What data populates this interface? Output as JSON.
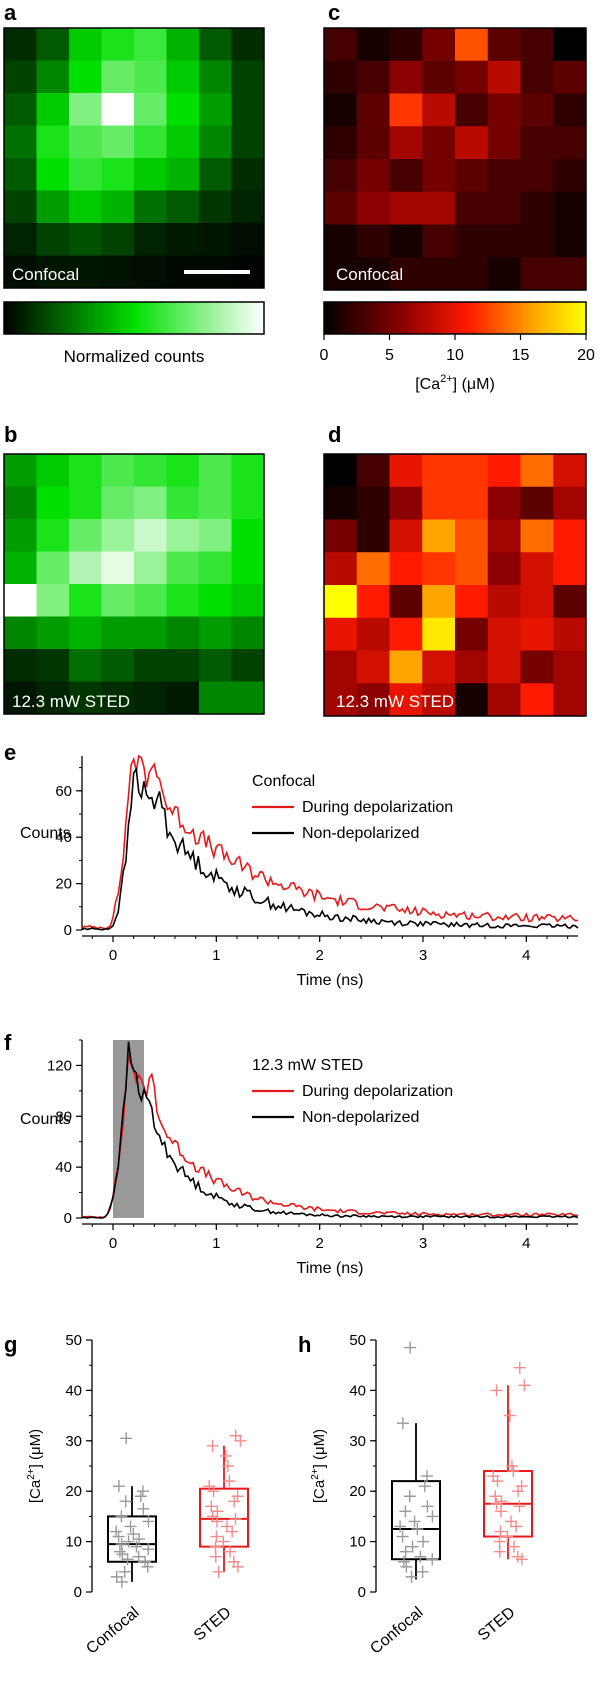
{
  "panels": {
    "a": {
      "letter": "a",
      "label": "Confocal",
      "colorbar_label": "Normalized counts",
      "grid": [
        [
          0.1,
          0.2,
          0.45,
          0.55,
          0.62,
          0.4,
          0.2,
          0.1
        ],
        [
          0.15,
          0.3,
          0.5,
          0.7,
          0.65,
          0.45,
          0.3,
          0.15
        ],
        [
          0.2,
          0.45,
          0.75,
          1.0,
          0.7,
          0.5,
          0.35,
          0.15
        ],
        [
          0.25,
          0.55,
          0.65,
          0.7,
          0.6,
          0.45,
          0.3,
          0.15
        ],
        [
          0.2,
          0.5,
          0.6,
          0.55,
          0.45,
          0.4,
          0.2,
          0.1
        ],
        [
          0.15,
          0.35,
          0.45,
          0.4,
          0.25,
          0.2,
          0.12,
          0.08
        ],
        [
          0.08,
          0.15,
          0.18,
          0.15,
          0.08,
          0.06,
          0.05,
          0.03
        ],
        [
          0.03,
          0.05,
          0.05,
          0.04,
          0.03,
          0.02,
          0.02,
          0.01
        ]
      ]
    },
    "b": {
      "letter": "b",
      "label": "12.3 mW STED",
      "grid": [
        [
          0.35,
          0.45,
          0.55,
          0.65,
          0.6,
          0.55,
          0.65,
          0.55
        ],
        [
          0.3,
          0.5,
          0.55,
          0.7,
          0.75,
          0.6,
          0.65,
          0.55
        ],
        [
          0.35,
          0.55,
          0.7,
          0.8,
          0.9,
          0.8,
          0.75,
          0.5
        ],
        [
          0.4,
          0.7,
          0.85,
          0.95,
          0.8,
          0.65,
          0.6,
          0.5
        ],
        [
          1.0,
          0.75,
          0.55,
          0.7,
          0.65,
          0.55,
          0.5,
          0.45
        ],
        [
          0.3,
          0.35,
          0.4,
          0.35,
          0.35,
          0.3,
          0.35,
          0.3
        ],
        [
          0.1,
          0.12,
          0.25,
          0.2,
          0.15,
          0.15,
          0.2,
          0.15
        ],
        [
          0.05,
          0.08,
          0.12,
          0.1,
          0.08,
          0.06,
          0.3,
          0.3
        ]
      ]
    },
    "c": {
      "letter": "c",
      "label": "Confocal",
      "colorbar_ticks": [
        "0",
        "5",
        "10",
        "15",
        "20"
      ],
      "colorbar_label_main": "[Ca",
      "colorbar_label_sup": "2+",
      "colorbar_label_tail": "] (μM)",
      "colorbar_range": [
        0,
        20
      ],
      "grid": [
        [
          3,
          1,
          2,
          5,
          13,
          4,
          3,
          0
        ],
        [
          2,
          3,
          6,
          4,
          5,
          8,
          3,
          4
        ],
        [
          1,
          4,
          12,
          8,
          3,
          5,
          4,
          2
        ],
        [
          2,
          4,
          7,
          5,
          8,
          5,
          3,
          3
        ],
        [
          3,
          5,
          3,
          5,
          4,
          3,
          3,
          2
        ],
        [
          4,
          6,
          7,
          7,
          3,
          3,
          2,
          1
        ],
        [
          1,
          2,
          1,
          3,
          2,
          2,
          2,
          1
        ],
        [
          1,
          1,
          2,
          2,
          2,
          1,
          3,
          3
        ]
      ]
    },
    "d": {
      "letter": "d",
      "label": "12.3 mW STED",
      "grid": [
        [
          0,
          3,
          10,
          12,
          12,
          11,
          14,
          9
        ],
        [
          1,
          2,
          6,
          12,
          12,
          6,
          4,
          7
        ],
        [
          5,
          2,
          9,
          16,
          13,
          7,
          14,
          11
        ],
        [
          8,
          14,
          11,
          12,
          13,
          6,
          9,
          11
        ],
        [
          20,
          11,
          4,
          16,
          11,
          8,
          9,
          4
        ],
        [
          10,
          8,
          11,
          19,
          5,
          9,
          10,
          8
        ],
        [
          7,
          9,
          16,
          9,
          7,
          9,
          5,
          7
        ],
        [
          7,
          6,
          10,
          8,
          1,
          7,
          11,
          7
        ]
      ]
    }
  },
  "chart_data": [
    {
      "panel": "e",
      "type": "line",
      "legend_title": "Confocal",
      "xlabel": "Time (ns)",
      "ylabel": "Counts",
      "xlim": [
        -0.3,
        4.5
      ],
      "ylim": [
        0,
        75
      ],
      "xticks": [
        0,
        1,
        2,
        3,
        4
      ],
      "yticks": [
        0,
        20,
        40,
        60
      ],
      "series": [
        {
          "name": "During depolarization",
          "color": "#e8191b",
          "peak": 76,
          "tau": 0.95,
          "baseline": 4,
          "rise": 0.06,
          "t_peak": 0.18,
          "secondary": [
            0.42,
            12
          ]
        },
        {
          "name": "Non-depolarized",
          "color": "#000000",
          "peak": 68,
          "tau": 0.7,
          "baseline": 1.5,
          "rise": 0.07,
          "t_peak": 0.2,
          "secondary": [
            0.45,
            10
          ]
        }
      ]
    },
    {
      "panel": "f",
      "type": "line",
      "legend_title": "12.3 mW STED",
      "xlabel": "Time (ns)",
      "ylabel": "Counts",
      "xlim": [
        -0.3,
        4.5
      ],
      "ylim": [
        0,
        140
      ],
      "xticks": [
        0,
        1,
        2,
        3,
        4
      ],
      "yticks": [
        0,
        40,
        80,
        120
      ],
      "gate": [
        0.0,
        0.3
      ],
      "series": [
        {
          "name": "During depolarization",
          "color": "#e8191b",
          "peak": 128,
          "tau": 0.55,
          "baseline": 2.5,
          "rise": 0.05,
          "t_peak": 0.15,
          "secondary": [
            0.38,
            25
          ]
        },
        {
          "name": "Non-depolarized",
          "color": "#000000",
          "peak": 132,
          "tau": 0.4,
          "baseline": 1,
          "rise": 0.05,
          "t_peak": 0.15,
          "secondary": [
            0.35,
            10
          ]
        }
      ]
    },
    {
      "panel": "g",
      "type": "box",
      "ylabel_main": "[Ca",
      "ylabel_sup": "2+",
      "ylabel_tail": "] (μM)",
      "ylim": [
        0,
        50
      ],
      "yticks": [
        0,
        10,
        20,
        30,
        40,
        50
      ],
      "categories": [
        "Confocal",
        "STED"
      ],
      "boxes": [
        {
          "name": "Confocal",
          "color": "#000000",
          "point_color": "#9a9a9a",
          "q1": 6,
          "median": 9.5,
          "q3": 15,
          "whisker_low": 2,
          "whisker_high": 21,
          "points": [
            30.5,
            21,
            20,
            19,
            18,
            16.5,
            15,
            14,
            13,
            12,
            11.5,
            11,
            10.5,
            10,
            9.5,
            9,
            8.5,
            8,
            7.5,
            7,
            6.5,
            6,
            5,
            4,
            3,
            2
          ]
        },
        {
          "name": "STED",
          "color": "#e8191b",
          "point_color": "#f48c8c",
          "q1": 9,
          "median": 14.5,
          "q3": 20.5,
          "whisker_low": 4,
          "whisker_high": 29,
          "points": [
            31,
            30,
            29,
            27,
            25,
            22,
            21,
            20,
            19,
            18,
            17,
            16,
            15,
            14.5,
            14,
            13,
            12,
            11,
            10,
            9,
            8,
            7,
            6,
            5,
            4
          ]
        }
      ]
    },
    {
      "panel": "h",
      "type": "box",
      "ylabel_main": "[Ca",
      "ylabel_sup": "2+",
      "ylabel_tail": "] (μM)",
      "ylim": [
        0,
        50
      ],
      "yticks": [
        0,
        10,
        20,
        30,
        40,
        50
      ],
      "categories": [
        "Confocal",
        "STED"
      ],
      "boxes": [
        {
          "name": "Confocal",
          "color": "#000000",
          "point_color": "#9a9a9a",
          "q1": 6.5,
          "median": 12.5,
          "q3": 22,
          "whisker_low": 2.5,
          "whisker_high": 33.5,
          "points": [
            48.5,
            33.5,
            23,
            21,
            19,
            17,
            16,
            15,
            14,
            13,
            12.5,
            11,
            10,
            9,
            8,
            7,
            6.5,
            6,
            5,
            4,
            3
          ]
        },
        {
          "name": "STED",
          "color": "#e8191b",
          "point_color": "#f48c8c",
          "q1": 11,
          "median": 17.5,
          "q3": 24,
          "whisker_low": 6.5,
          "whisker_high": 41,
          "points": [
            44.5,
            41,
            40,
            35,
            25,
            24,
            23,
            22,
            21,
            20,
            19,
            18,
            17.5,
            17,
            16,
            14,
            13,
            12,
            11,
            10,
            9,
            8,
            7,
            6.5
          ]
        }
      ]
    }
  ]
}
